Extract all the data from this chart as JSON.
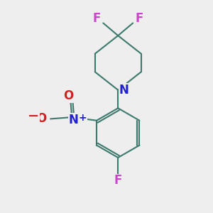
{
  "bg_color": "#eeeeee",
  "bond_color": "#3d7a6d",
  "bond_width": 1.5,
  "N_color": "#2222cc",
  "O_color": "#cc2222",
  "F_color": "#cc44cc",
  "label_fontsize": 11,
  "fig_width": 3.0,
  "fig_height": 3.0,
  "dpi": 100,
  "xlim": [
    -2.5,
    2.5
  ],
  "ylim": [
    -3.2,
    3.2
  ]
}
